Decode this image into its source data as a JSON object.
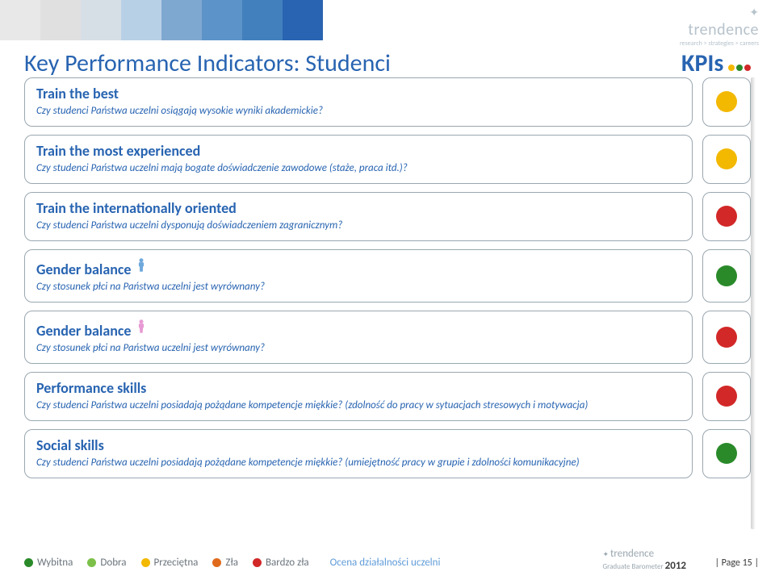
{
  "header_strip_colors": [
    "#e8e8e8",
    "#e0e0e0",
    "#d6dee6",
    "#b8d0e6",
    "#7fa8d0",
    "#5c93c8",
    "#4280bd",
    "#2864b1"
  ],
  "brand_top": {
    "name": "trendence",
    "tagline": "research > strategies > careers"
  },
  "page_title": "Key Performance Indicators: Studenci",
  "kpi_badge": {
    "text": "KPIs",
    "dots": [
      "#f3b800",
      "#2a8a2a",
      "#d22828"
    ]
  },
  "cards": [
    {
      "title": "Train the best",
      "desc": "Czy studenci Państwa uczelni osiągają wysokie wyniki akademickie?",
      "light": "#f3b800",
      "icon": null
    },
    {
      "title": "Train the most experienced",
      "desc": "Czy studenci Państwa uczelni mają bogate doświadczenie zawodowe (staże, praca itd.)?",
      "light": "#f3b800",
      "icon": null
    },
    {
      "title": "Train the internationally oriented",
      "desc": "Czy studenci Państwa uczelni dysponują doświadczeniem zagranicznym?",
      "light": "#d22828",
      "icon": null
    },
    {
      "title": "Gender balance",
      "desc": "Czy stosunek płci na Państwa uczelni jest wyrównany?",
      "light": "#2a8a2a",
      "icon": "male",
      "icon_color": "#6fa8dc"
    },
    {
      "title": "Gender balance",
      "desc": "Czy stosunek płci na Państwa uczelni jest wyrównany?",
      "light": "#d22828",
      "icon": "female",
      "icon_color": "#e79ad4"
    },
    {
      "title": "Performance skills",
      "desc": "Czy studenci Państwa uczelni posiadają pożądane kompetencje miękkie? (zdolność do pracy w sytuacjach stresowych i motywacja)",
      "light": "#d22828",
      "icon": null
    },
    {
      "title": "Social skills",
      "desc": "Czy studenci Państwa uczelni posiadają pożądane kompetencje miękkie? (umiejętność pracy w grupie i zdolności komunikacyjne)",
      "light": "#2a8a2a",
      "icon": null
    }
  ],
  "legend": {
    "items": [
      {
        "label": "Wybitna",
        "color": "#2a8a2a"
      },
      {
        "label": "Dobra",
        "color": "#7cc04a"
      },
      {
        "label": "Przeciętna",
        "color": "#f3b800"
      },
      {
        "label": "Zła",
        "color": "#e06a1c"
      },
      {
        "label": "Bardzo zła",
        "color": "#d22828"
      }
    ],
    "tail": "Ocena działalności uczelni"
  },
  "footer_brand": {
    "name": "trendence",
    "sub": "Graduate Barometer",
    "year": "2012"
  },
  "page_num": "| Page 15 |"
}
